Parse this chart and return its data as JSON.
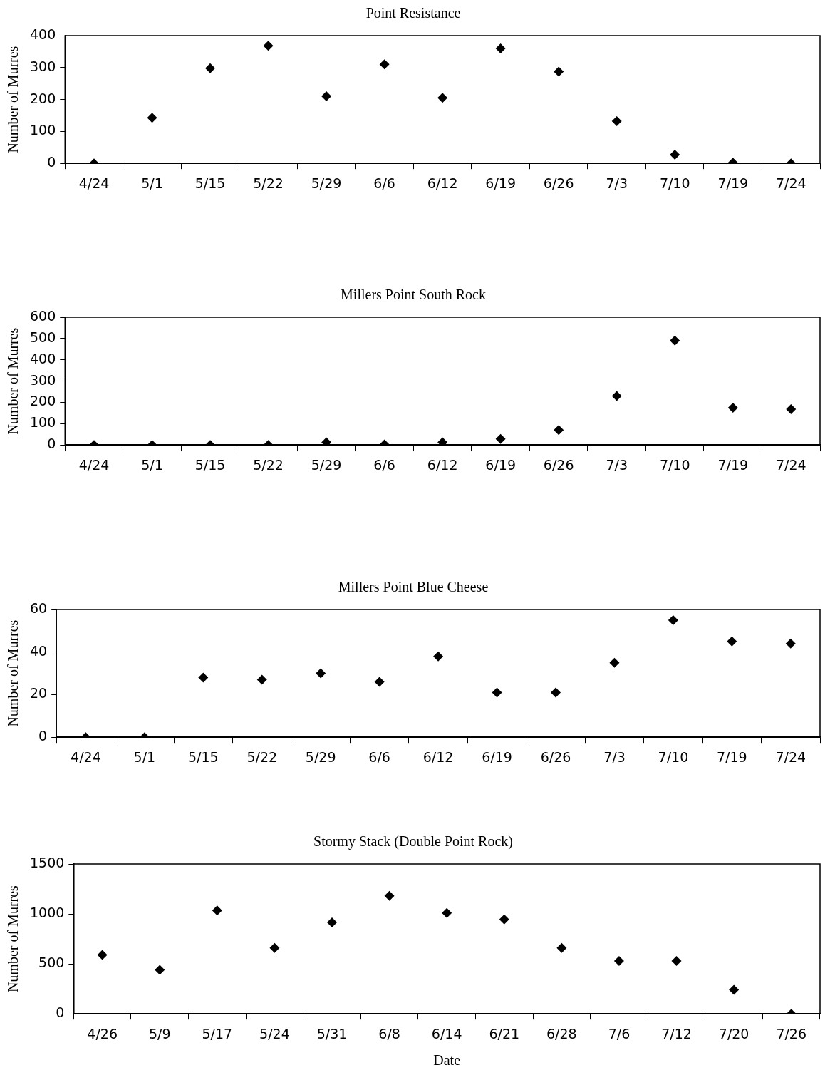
{
  "chart_data": [
    {
      "type": "scatter",
      "title": "Point Resistance",
      "ylabel": "Number of Murres",
      "categories": [
        "4/24",
        "5/1",
        "5/15",
        "5/22",
        "5/29",
        "6/6",
        "6/12",
        "6/19",
        "6/26",
        "7/3",
        "7/10",
        "7/19",
        "7/24"
      ],
      "values": [
        0,
        143,
        298,
        368,
        210,
        310,
        205,
        360,
        287,
        132,
        27,
        2,
        0
      ],
      "color": "#000000",
      "marker": "diamond",
      "ylim": [
        0,
        400
      ],
      "yticks": [
        0,
        100,
        200,
        300,
        400
      ]
    },
    {
      "type": "scatter",
      "title": "Millers Point South Rock",
      "ylabel": "Number of Murres",
      "categories": [
        "4/24",
        "5/1",
        "5/15",
        "5/22",
        "5/29",
        "6/6",
        "6/12",
        "6/19",
        "6/26",
        "7/3",
        "7/10",
        "7/19",
        "7/24"
      ],
      "values": [
        0,
        0,
        0,
        0,
        12,
        2,
        12,
        28,
        70,
        230,
        490,
        175,
        168
      ],
      "color": "#000000",
      "marker": "diamond",
      "ylim": [
        0,
        600
      ],
      "yticks": [
        0,
        100,
        200,
        300,
        400,
        500,
        600
      ]
    },
    {
      "type": "scatter",
      "title": "Millers Point Blue Cheese",
      "ylabel": "Number of Murres",
      "categories": [
        "4/24",
        "5/1",
        "5/15",
        "5/22",
        "5/29",
        "6/6",
        "6/12",
        "6/19",
        "6/26",
        "7/3",
        "7/10",
        "7/19",
        "7/24"
      ],
      "values": [
        0,
        0,
        28,
        27,
        30,
        26,
        38,
        21,
        21,
        35,
        55,
        45,
        44
      ],
      "color": "#000000",
      "marker": "diamond",
      "ylim": [
        0,
        60
      ],
      "yticks": [
        0,
        20,
        40,
        60
      ]
    },
    {
      "type": "scatter",
      "title": "Stormy Stack (Double Point Rock)",
      "xlabel": "Date",
      "ylabel": "Number of Murres",
      "categories": [
        "4/26",
        "5/9",
        "5/17",
        "5/24",
        "5/31",
        "6/8",
        "6/14",
        "6/21",
        "6/28",
        "7/6",
        "7/12",
        "7/20",
        "7/26"
      ],
      "values": [
        590,
        440,
        1035,
        660,
        915,
        1180,
        1010,
        945,
        660,
        530,
        530,
        240,
        0
      ],
      "color": "#000000",
      "marker": "diamond",
      "ylim": [
        0,
        1500
      ],
      "yticks": [
        0,
        500,
        1000,
        1500
      ]
    }
  ]
}
